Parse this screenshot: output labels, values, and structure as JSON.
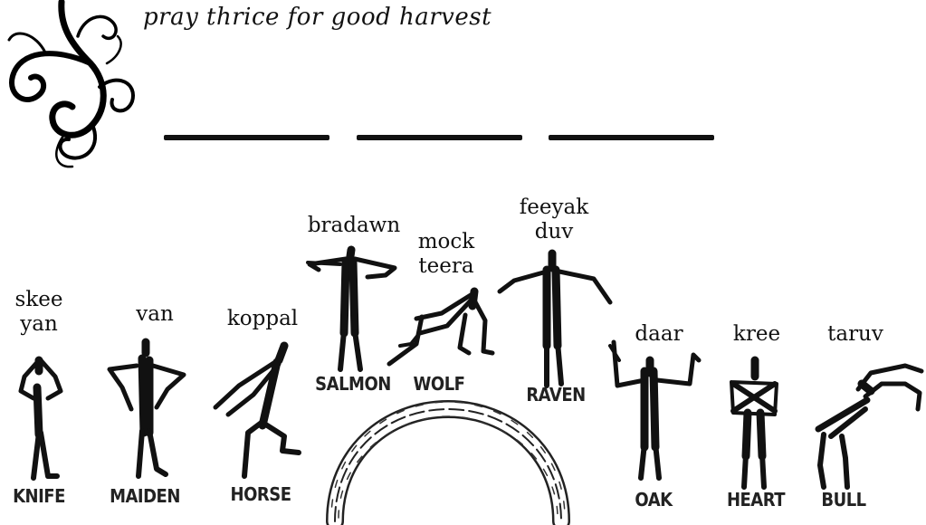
{
  "title": "pray thrice for good harvest",
  "blank_count": 3,
  "poses": [
    {
      "id": "knife",
      "name": "skee\nyan",
      "caption": "KNIFE"
    },
    {
      "id": "maiden",
      "name": "van",
      "caption": "MAIDEN"
    },
    {
      "id": "horse",
      "name": "koppal",
      "caption": "HORSE"
    },
    {
      "id": "salmon",
      "name": "bradawn",
      "caption": "SALMON"
    },
    {
      "id": "wolf",
      "name": "mock\nteera",
      "caption": "WOLF"
    },
    {
      "id": "raven",
      "name": "feeyak\nduv",
      "caption": "RAVEN"
    },
    {
      "id": "oak",
      "name": "daar",
      "caption": "OAK"
    },
    {
      "id": "heart",
      "name": "kree",
      "caption": "HEART"
    },
    {
      "id": "bull",
      "name": "taruv",
      "caption": "BULL"
    }
  ],
  "icons": {
    "corner": "swirl-vine-icon",
    "center": "braided-arch-icon"
  },
  "colors": {
    "ink": "#111111",
    "background": "#ffffff"
  }
}
